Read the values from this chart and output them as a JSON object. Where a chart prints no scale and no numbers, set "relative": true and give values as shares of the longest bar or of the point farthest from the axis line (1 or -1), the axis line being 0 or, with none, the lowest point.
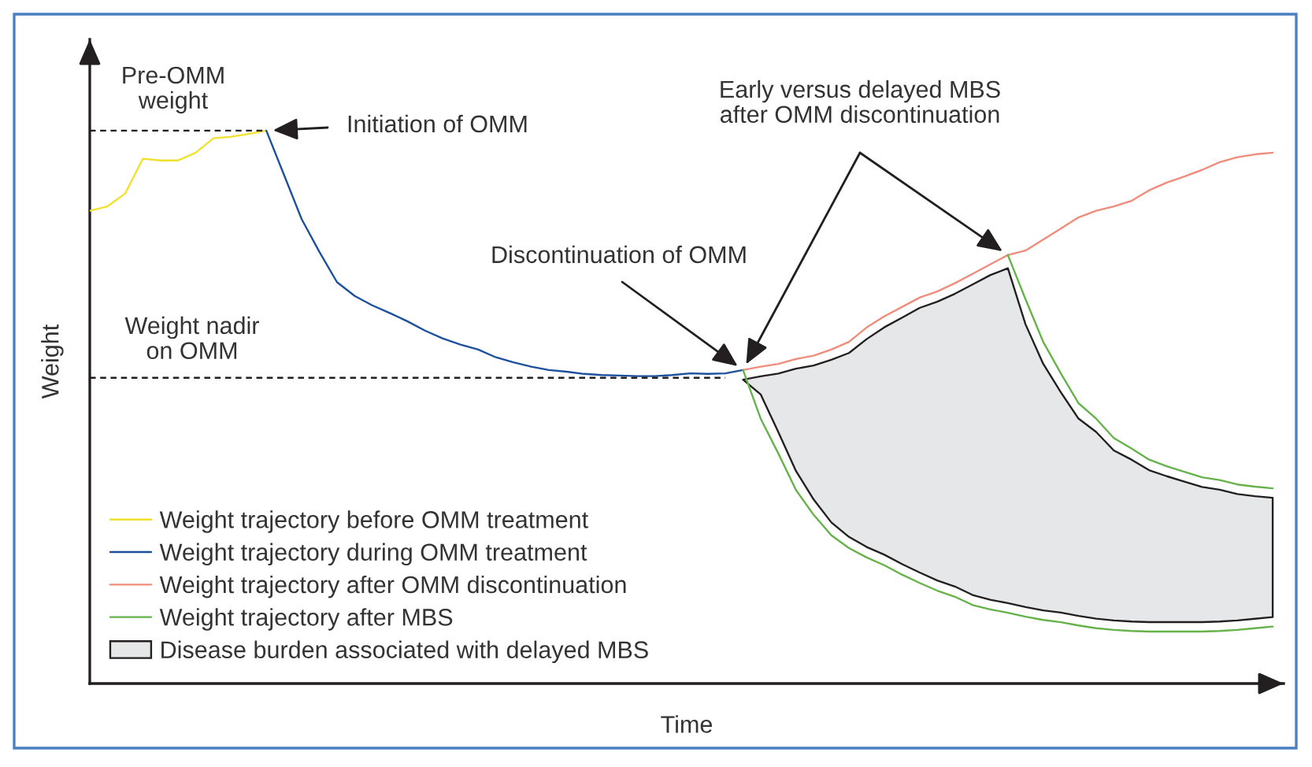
{
  "chart_data": {
    "type": "line",
    "relative": true,
    "xlabel": "Time",
    "ylabel": "Weight",
    "legend": "bottom left",
    "annotations": [
      "Pre-OMM\nweight",
      "Weight nadir\non OMM",
      "Initiation of OMM",
      "Discontinuation of OMM",
      "Early versus delayed MBS\nafter OMM discontinuation",
      "Disease burden associated with delayed MBS"
    ],
    "categories": [
      null,
      null,
      null,
      null,
      null,
      null,
      null,
      null,
      null,
      null,
      null,
      null,
      null,
      null,
      null,
      null,
      null,
      null,
      null,
      null,
      null,
      null,
      null,
      null,
      null,
      null,
      null,
      null,
      null,
      null,
      null,
      null,
      null,
      null,
      null,
      null,
      null,
      null,
      null,
      null,
      null,
      null,
      null,
      null,
      null,
      null,
      null,
      null,
      null,
      null,
      null,
      null,
      null,
      null,
      null,
      null,
      null,
      null,
      null,
      null,
      null,
      null,
      null,
      null,
      null,
      null,
      null,
      null
    ],
    "series": [
      {
        "name": "Weight trajectory before OMM treatment",
        "color": "#f2e12c",
        "values": [
          0.855,
          0.863,
          0.886,
          0.949,
          0.946,
          0.946,
          0.96,
          0.986,
          0.989,
          0.994,
          1.0,
          null,
          null,
          null,
          null,
          null,
          null,
          null,
          null,
          null,
          null,
          null,
          null,
          null,
          null,
          null,
          null,
          null,
          null,
          null,
          null,
          null,
          null,
          null,
          null,
          null,
          null,
          null,
          null,
          null,
          null,
          null,
          null,
          null,
          null,
          null,
          null,
          null,
          null,
          null,
          null,
          null,
          null,
          null,
          null,
          null,
          null,
          null,
          null,
          null,
          null,
          null,
          null,
          null,
          null,
          null,
          null,
          null
        ]
      },
      {
        "name": "Weight trajectory during OMM treatment",
        "color": "#1c4f9c",
        "values": [
          null,
          null,
          null,
          null,
          null,
          null,
          null,
          null,
          null,
          null,
          1.0,
          0.92,
          0.84,
          0.781,
          0.726,
          0.701,
          0.684,
          0.67,
          0.655,
          0.638,
          0.624,
          0.613,
          0.604,
          0.59,
          0.581,
          0.573,
          0.567,
          0.564,
          0.56,
          0.558,
          0.557,
          0.556,
          0.556,
          0.558,
          0.561,
          0.56,
          0.561,
          0.567,
          null,
          null,
          null,
          null,
          null,
          null,
          null,
          null,
          null,
          null,
          null,
          null,
          null,
          null,
          null,
          null,
          null,
          null,
          null,
          null,
          null,
          null,
          null,
          null,
          null,
          null,
          null,
          null,
          null,
          null
        ]
      },
      {
        "name": "Weight trajectory after OMM discontinuation",
        "color": "#f08c7b",
        "values": [
          null,
          null,
          null,
          null,
          null,
          null,
          null,
          null,
          null,
          null,
          null,
          null,
          null,
          null,
          null,
          null,
          null,
          null,
          null,
          null,
          null,
          null,
          null,
          null,
          null,
          null,
          null,
          null,
          null,
          null,
          null,
          null,
          null,
          null,
          null,
          null,
          null,
          0.567,
          0.573,
          0.578,
          0.587,
          0.593,
          0.604,
          0.618,
          0.644,
          0.664,
          0.681,
          0.698,
          0.709,
          0.724,
          0.741,
          0.758,
          0.775,
          0.783,
          0.803,
          0.823,
          0.843,
          0.855,
          0.863,
          0.873,
          0.892,
          0.906,
          0.917,
          0.929,
          0.943,
          0.952,
          0.957,
          0.96
        ]
      },
      {
        "name": "Weight trajectory after MBS",
        "color": "#66b24a",
        "values": [
          null,
          null,
          null,
          null,
          null,
          null,
          null,
          null,
          null,
          null,
          null,
          null,
          null,
          null,
          null,
          null,
          null,
          null,
          null,
          null,
          null,
          null,
          null,
          null,
          null,
          null,
          null,
          null,
          null,
          null,
          null,
          null,
          null,
          null,
          null,
          null,
          null,
          0.567,
          0.479,
          0.416,
          0.35,
          0.305,
          0.268,
          0.245,
          0.228,
          0.214,
          0.197,
          0.182,
          0.168,
          0.157,
          0.142,
          0.134,
          0.128,
          0.121,
          0.115,
          0.111,
          0.105,
          0.1,
          0.097,
          0.095,
          0.094,
          0.094,
          0.094,
          0.094,
          0.095,
          0.097,
          0.1,
          0.103
        ]
      },
      {
        "color": "#66b24a",
        "values": [
          null,
          null,
          null,
          null,
          null,
          null,
          null,
          null,
          null,
          null,
          null,
          null,
          null,
          null,
          null,
          null,
          null,
          null,
          null,
          null,
          null,
          null,
          null,
          null,
          null,
          null,
          null,
          null,
          null,
          null,
          null,
          null,
          null,
          null,
          null,
          null,
          null,
          null,
          null,
          null,
          null,
          null,
          null,
          null,
          null,
          null,
          null,
          null,
          null,
          null,
          null,
          null,
          0.775,
          0.695,
          0.618,
          0.561,
          0.507,
          0.479,
          0.444,
          0.425,
          0.405,
          0.393,
          0.383,
          0.373,
          0.368,
          0.36,
          0.356,
          0.353
        ]
      },
      {
        "color": "#231f20",
        "line_style": "dashed",
        "values": [
          1.0,
          1.0,
          1.0,
          1.0,
          1.0,
          1.0,
          1.0,
          1.0,
          1.0,
          1.0,
          1.0,
          null,
          null,
          null,
          null,
          null,
          null,
          null,
          null,
          null,
          null,
          null,
          null,
          null,
          null,
          null,
          null,
          null,
          null,
          null,
          null,
          null,
          null,
          null,
          null,
          null,
          null,
          null,
          null,
          null,
          null,
          null,
          null,
          null,
          null,
          null,
          null,
          null,
          null,
          null,
          null,
          null,
          null,
          null,
          null,
          null,
          null,
          null,
          null,
          null,
          null,
          null,
          null,
          null,
          null,
          null,
          null,
          null
        ]
      },
      {
        "color": "#231f20",
        "line_style": "dashed",
        "values": [
          0.553,
          0.553,
          0.553,
          0.553,
          0.553,
          0.553,
          0.553,
          0.553,
          0.553,
          0.553,
          0.553,
          0.553,
          0.553,
          0.553,
          0.553,
          0.553,
          0.553,
          0.553,
          0.553,
          0.553,
          0.553,
          0.553,
          0.553,
          0.553,
          0.553,
          0.553,
          0.553,
          0.553,
          0.553,
          0.553,
          0.553,
          0.553,
          0.553,
          0.553,
          0.553,
          0.553,
          0.553,
          null,
          null,
          null,
          null,
          null,
          null,
          null,
          null,
          null,
          null,
          null,
          null,
          null,
          null,
          null,
          null,
          null,
          null,
          null,
          null,
          null,
          null,
          null,
          null,
          null,
          null,
          null,
          null,
          null,
          null,
          null
        ]
      }
    ]
  }
}
